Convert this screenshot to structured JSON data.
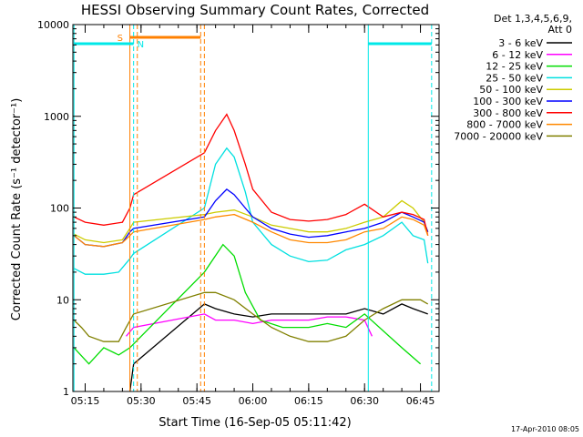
{
  "chart_data": {
    "type": "line",
    "title": "HESSI Observing Summary Count Rates, Corrected",
    "xlabel": "Start Time (16-Sep-05 05:11:42)",
    "ylabel": "Corrected Count Rate (s⁻¹ detector⁻¹)",
    "y_scale": "log",
    "ylim": [
      1,
      10000
    ],
    "xlim": [
      "05:11:42",
      "06:50:00"
    ],
    "x_ticks": [
      "05:15",
      "05:30",
      "05:45",
      "06:00",
      "06:15",
      "06:30",
      "06:45"
    ],
    "y_ticks": [
      "1",
      "10",
      "100",
      "1000",
      "10000"
    ],
    "legend_header": [
      "Det 1,3,4,5,6,9,",
      "Att 0"
    ],
    "legend_position": "right",
    "date_stamp": "17-Apr-2010 08:05",
    "markers": [
      {
        "label": "S",
        "color": "#ff8000",
        "start": "05:27",
        "end": "05:46"
      },
      {
        "label": "N",
        "color": "#00e8e8",
        "start": "05:12",
        "end": "05:28"
      },
      {
        "label": "",
        "color": "#00e8e8",
        "start": "06:31",
        "end": "06:48"
      }
    ],
    "data_gap": [
      "05:29",
      "05:47"
    ],
    "series": [
      {
        "name": "3 - 6 keV",
        "color": "#000000",
        "x": [
          "05:27",
          "05:28",
          "05:47",
          "05:50",
          "05:55",
          "06:00",
          "06:05",
          "06:10",
          "06:15",
          "06:20",
          "06:25",
          "06:30",
          "06:35",
          "06:40",
          "06:43",
          "06:47"
        ],
        "y": [
          1,
          2,
          9,
          8,
          7,
          6.5,
          7,
          7,
          7,
          7,
          7,
          8,
          7,
          9,
          8,
          7
        ]
      },
      {
        "name": "6 - 12 keV",
        "color": "#ff00ff",
        "x": [
          "05:26",
          "05:28",
          "05:47",
          "05:50",
          "05:55",
          "06:00",
          "06:05",
          "06:10",
          "06:15",
          "06:20",
          "06:25",
          "06:30",
          "06:32"
        ],
        "y": [
          4,
          5,
          7,
          6,
          6,
          5.5,
          6,
          6,
          6,
          6.5,
          6.5,
          6,
          4
        ]
      },
      {
        "name": "12 - 25 keV",
        "color": "#00dd00",
        "x": [
          "05:12",
          "05:16",
          "05:20",
          "05:24",
          "05:27",
          "05:47",
          "05:52",
          "05:55",
          "05:58",
          "06:02",
          "06:08",
          "06:15",
          "06:20",
          "06:25",
          "06:30",
          "06:40",
          "06:45"
        ],
        "y": [
          3,
          2,
          3,
          2.5,
          3,
          20,
          40,
          30,
          12,
          6,
          5,
          5,
          5.5,
          5,
          7,
          3,
          2
        ]
      },
      {
        "name": "25 - 50 keV",
        "color": "#00e0e0",
        "x": [
          "05:12",
          "05:15",
          "05:20",
          "05:24",
          "05:27",
          "05:28",
          "05:47",
          "05:50",
          "05:53",
          "05:55",
          "05:58",
          "06:00",
          "06:05",
          "06:10",
          "06:15",
          "06:20",
          "06:25",
          "06:30",
          "06:35",
          "06:40",
          "06:43",
          "06:46",
          "06:47"
        ],
        "y": [
          22,
          19,
          19,
          20,
          28,
          32,
          100,
          300,
          450,
          360,
          150,
          70,
          40,
          30,
          26,
          27,
          35,
          40,
          50,
          70,
          50,
          45,
          25
        ]
      },
      {
        "name": "50 - 100 keV",
        "color": "#cccc00",
        "x": [
          "05:12",
          "05:15",
          "05:20",
          "05:25",
          "05:27",
          "05:28",
          "05:47",
          "05:50",
          "05:55",
          "06:00",
          "06:05",
          "06:10",
          "06:15",
          "06:20",
          "06:25",
          "06:30",
          "06:35",
          "06:40",
          "06:43",
          "06:46",
          "06:47"
        ],
        "y": [
          52,
          45,
          42,
          45,
          60,
          70,
          85,
          90,
          95,
          80,
          65,
          60,
          55,
          55,
          60,
          70,
          80,
          120,
          100,
          70,
          55
        ]
      },
      {
        "name": "100 - 300 keV",
        "color": "#0000ff",
        "x": [
          "05:12",
          "05:15",
          "05:20",
          "05:25",
          "05:27",
          "05:28",
          "05:47",
          "05:50",
          "05:53",
          "05:55",
          "05:58",
          "06:00",
          "06:05",
          "06:10",
          "06:15",
          "06:20",
          "06:25",
          "06:30",
          "06:35",
          "06:40",
          "06:43",
          "06:46",
          "06:47"
        ],
        "y": [
          50,
          40,
          38,
          42,
          55,
          60,
          80,
          120,
          160,
          140,
          100,
          80,
          60,
          52,
          48,
          50,
          55,
          60,
          70,
          90,
          80,
          70,
          55
        ]
      },
      {
        "name": "300 - 800 keV",
        "color": "#ff0000",
        "x": [
          "05:12",
          "05:15",
          "05:20",
          "05:25",
          "05:27",
          "05:28",
          "05:47",
          "05:50",
          "05:53",
          "05:55",
          "05:58",
          "06:00",
          "06:05",
          "06:10",
          "06:15",
          "06:20",
          "06:25",
          "06:30",
          "06:35",
          "06:40",
          "06:43",
          "06:46",
          "06:47"
        ],
        "y": [
          80,
          70,
          65,
          70,
          100,
          140,
          400,
          700,
          1050,
          700,
          300,
          160,
          90,
          75,
          72,
          75,
          85,
          110,
          80,
          90,
          85,
          75,
          50
        ]
      },
      {
        "name": "800 - 7000 keV",
        "color": "#ff8800",
        "x": [
          "05:12",
          "05:15",
          "05:20",
          "05:25",
          "05:27",
          "05:28",
          "05:47",
          "05:50",
          "05:55",
          "06:00",
          "06:05",
          "06:10",
          "06:15",
          "06:20",
          "06:25",
          "06:30",
          "06:35",
          "06:40",
          "06:43",
          "06:46",
          "06:47"
        ],
        "y": [
          50,
          40,
          38,
          42,
          50,
          55,
          75,
          80,
          85,
          70,
          55,
          45,
          42,
          42,
          45,
          55,
          60,
          80,
          75,
          65,
          50
        ]
      },
      {
        "name": "7000 - 20000 keV",
        "color": "#808000",
        "x": [
          "05:12",
          "05:14",
          "05:16",
          "05:20",
          "05:24",
          "05:26",
          "05:28",
          "05:47",
          "05:50",
          "05:55",
          "06:00",
          "06:05",
          "06:10",
          "06:15",
          "06:20",
          "06:25",
          "06:30",
          "06:35",
          "06:40",
          "06:45",
          "06:47"
        ],
        "y": [
          6,
          5,
          4,
          3.5,
          3.5,
          5,
          7,
          12,
          12,
          10,
          7,
          5,
          4,
          3.5,
          3.5,
          4,
          6,
          8,
          10,
          10,
          9
        ]
      }
    ]
  }
}
